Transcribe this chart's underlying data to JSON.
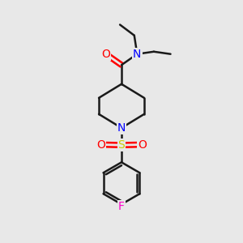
{
  "background_color": "#e8e8e8",
  "bond_color": "#1a1a1a",
  "N_color": "#0000ff",
  "O_color": "#ff0000",
  "S_color": "#cccc00",
  "F_color": "#ff00cc",
  "line_width": 1.8,
  "figsize": [
    3.0,
    3.0
  ],
  "dpi": 100,
  "xlim": [
    0,
    10
  ],
  "ylim": [
    0,
    10
  ]
}
